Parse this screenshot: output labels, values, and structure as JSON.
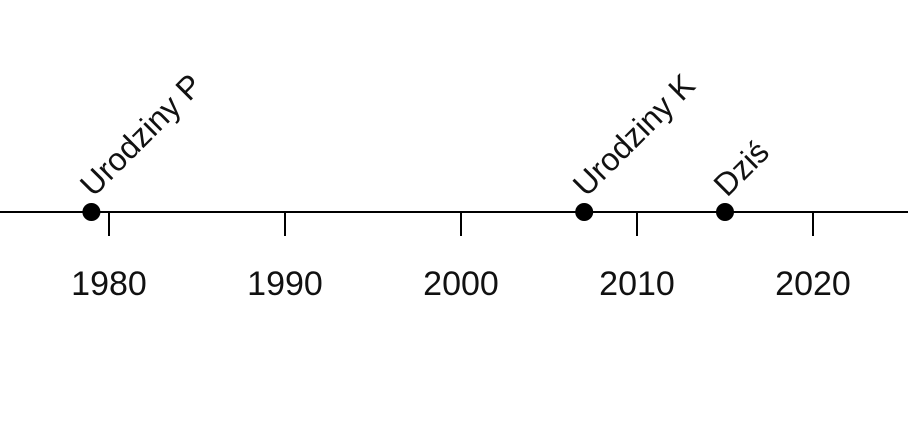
{
  "chart_data": {
    "type": "scatter",
    "title": "",
    "xlabel": "",
    "ylabel": "",
    "x_ticks": [
      1980,
      1990,
      2000,
      2010,
      2020
    ],
    "points": [
      {
        "x": 1979.0,
        "label": "Urodziny P"
      },
      {
        "x": 2007.0,
        "label": "Urodziny K"
      },
      {
        "x": 2015.0,
        "label": "Dziś"
      }
    ],
    "grid": false,
    "legend": "none"
  }
}
